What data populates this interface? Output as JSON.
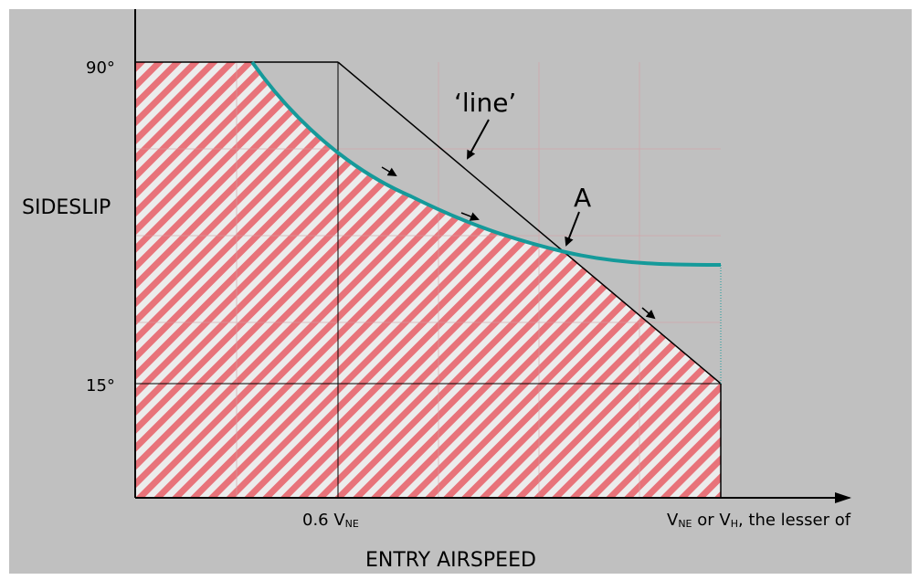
{
  "diagram": {
    "y_axis_label": "SIDESLIP",
    "x_axis_label": "ENTRY AIRSPEED",
    "y_ticks": {
      "top": "90°",
      "bottom": "15°"
    },
    "x_ticks": {
      "mid": {
        "prefix": "0.6 V",
        "sub": "NE"
      },
      "right": {
        "v1": "V",
        "sub1": "NE",
        "mid": " or V",
        "sub2": "H",
        "suffix": ", the lesser of"
      }
    },
    "annotation_line": "‘line’",
    "annotation_point": "A"
  },
  "colors": {
    "background": "#c0c0c0",
    "hatch_red": "#e8737a",
    "hatch_light": "#ececec",
    "curve": "#159a9a",
    "ink": "#000000"
  }
}
